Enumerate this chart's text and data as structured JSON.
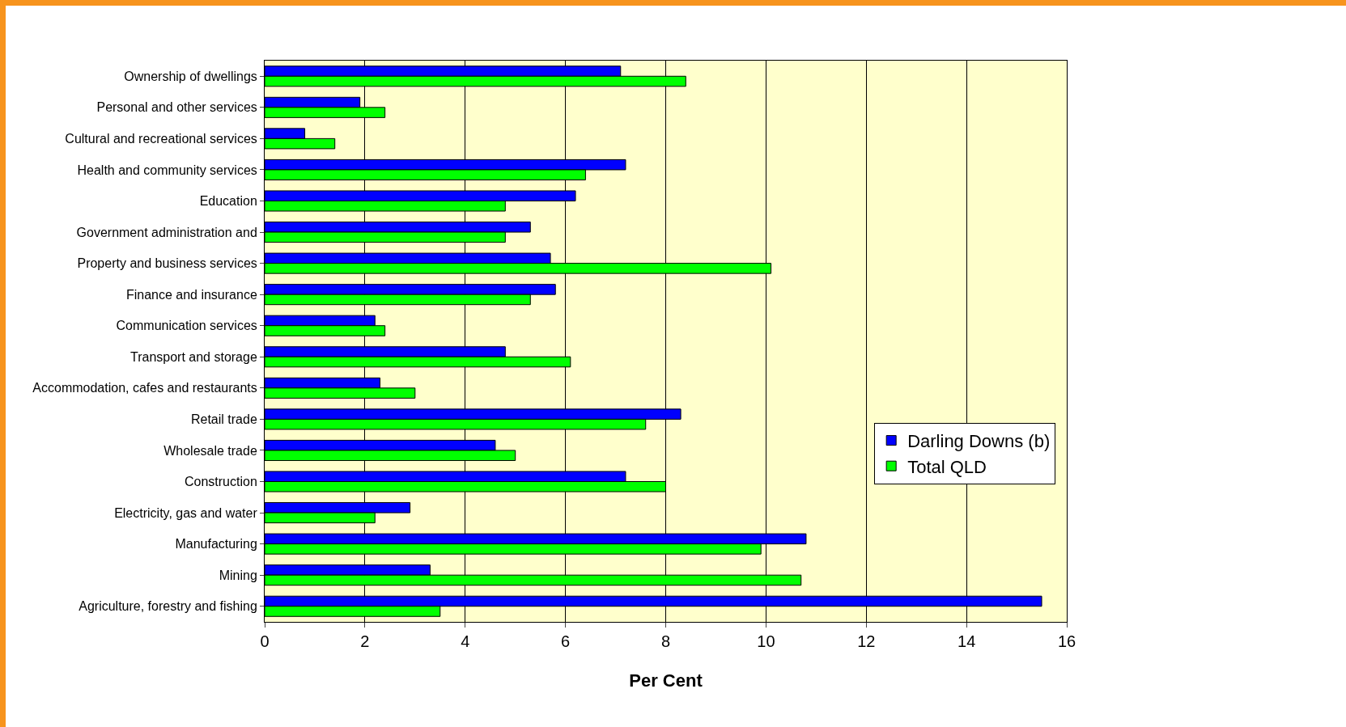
{
  "chart_data": {
    "type": "bar",
    "orientation": "horizontal",
    "xlabel": "Per Cent",
    "categories": [
      "Ownership of dwellings",
      "Personal and other services",
      "Cultural and recreational services",
      "Health and community services",
      "Education",
      "Government administration and",
      "Property and business services",
      "Finance and insurance",
      "Communication services",
      "Transport and storage",
      "Accommodation, cafes and restaurants",
      "Retail trade",
      "Wholesale trade",
      "Construction",
      "Electricity, gas and water",
      "Manufacturing",
      "Mining",
      "Agriculture, forestry and fishing"
    ],
    "series": [
      {
        "name": "Darling Downs (b)",
        "color": "#0000ff",
        "values": [
          7.1,
          1.9,
          0.8,
          7.2,
          6.2,
          5.3,
          5.7,
          5.8,
          2.2,
          4.8,
          2.3,
          8.3,
          4.6,
          7.2,
          2.9,
          10.8,
          3.3,
          15.5
        ]
      },
      {
        "name": "Total QLD",
        "color": "#00ff00",
        "values": [
          8.4,
          2.4,
          1.4,
          6.4,
          4.8,
          4.8,
          10.1,
          5.3,
          2.4,
          6.1,
          3.0,
          7.6,
          5.0,
          8.0,
          2.2,
          9.9,
          10.7,
          3.5
        ]
      }
    ],
    "xlim": [
      0,
      16
    ],
    "xticks": [
      0,
      2,
      4,
      6,
      8,
      10,
      12,
      14,
      16
    ],
    "grid": "x",
    "legend": "right"
  }
}
